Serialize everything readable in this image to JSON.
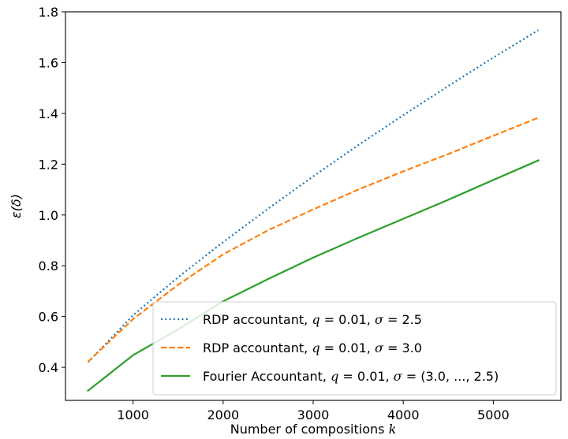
{
  "chart_data": {
    "type": "line",
    "xlabel": "Number of compositions k",
    "ylabel": "ε(δ)",
    "xlim": [
      250,
      5750
    ],
    "ylim": [
      0.27,
      1.8
    ],
    "x_ticks": [
      1000,
      2000,
      3000,
      4000,
      5000
    ],
    "y_ticks": [
      0.4,
      0.6,
      0.8,
      1.0,
      1.2,
      1.4,
      1.6,
      1.8
    ],
    "x_tick_labels": [
      "1000",
      "2000",
      "3000",
      "4000",
      "5000"
    ],
    "y_tick_labels": [
      "0.4",
      "0.6",
      "0.8",
      "1.0",
      "1.2",
      "1.4",
      "1.6",
      "1.8"
    ],
    "grid": false,
    "legend_position": "lower-right",
    "series": [
      {
        "name": "RDP accountant, q = 0.01, σ = 2.5",
        "color": "#1f77b4",
        "style": "dotted",
        "x": [
          500,
          1000,
          1500,
          2000,
          2500,
          3000,
          3500,
          4000,
          4500,
          5000,
          5500
        ],
        "y": [
          0.42,
          0.605,
          0.755,
          0.893,
          1.025,
          1.152,
          1.275,
          1.393,
          1.508,
          1.62,
          1.728
        ]
      },
      {
        "name": "RDP accountant, q = 0.01, σ = 3.0",
        "color": "#ff7f0e",
        "style": "dashed",
        "x": [
          500,
          1000,
          1500,
          2000,
          2500,
          3000,
          3500,
          4000,
          4500,
          5000,
          5500
        ],
        "y": [
          0.422,
          0.59,
          0.725,
          0.845,
          0.94,
          1.022,
          1.1,
          1.172,
          1.24,
          1.312,
          1.383
        ]
      },
      {
        "name": "Fourier Accountant, q = 0.01, σ = (3.0, ..., 2.5)",
        "color": "#2ca02c",
        "style": "solid",
        "x": [
          500,
          1000,
          1500,
          2000,
          2500,
          3000,
          3500,
          4000,
          4500,
          5000,
          5500
        ],
        "y": [
          0.308,
          0.448,
          0.55,
          0.66,
          0.748,
          0.832,
          0.91,
          0.985,
          1.06,
          1.138,
          1.215
        ]
      }
    ],
    "legend_entries": [
      {
        "prefix": "RDP accountant, ",
        "q": "0.01",
        "sigma": "2.5"
      },
      {
        "prefix": "RDP accountant, ",
        "q": "0.01",
        "sigma": "3.0"
      },
      {
        "prefix": "Fourier Accountant, ",
        "q": "0.01",
        "sigma": "(3.0, ..., 2.5)"
      }
    ]
  }
}
